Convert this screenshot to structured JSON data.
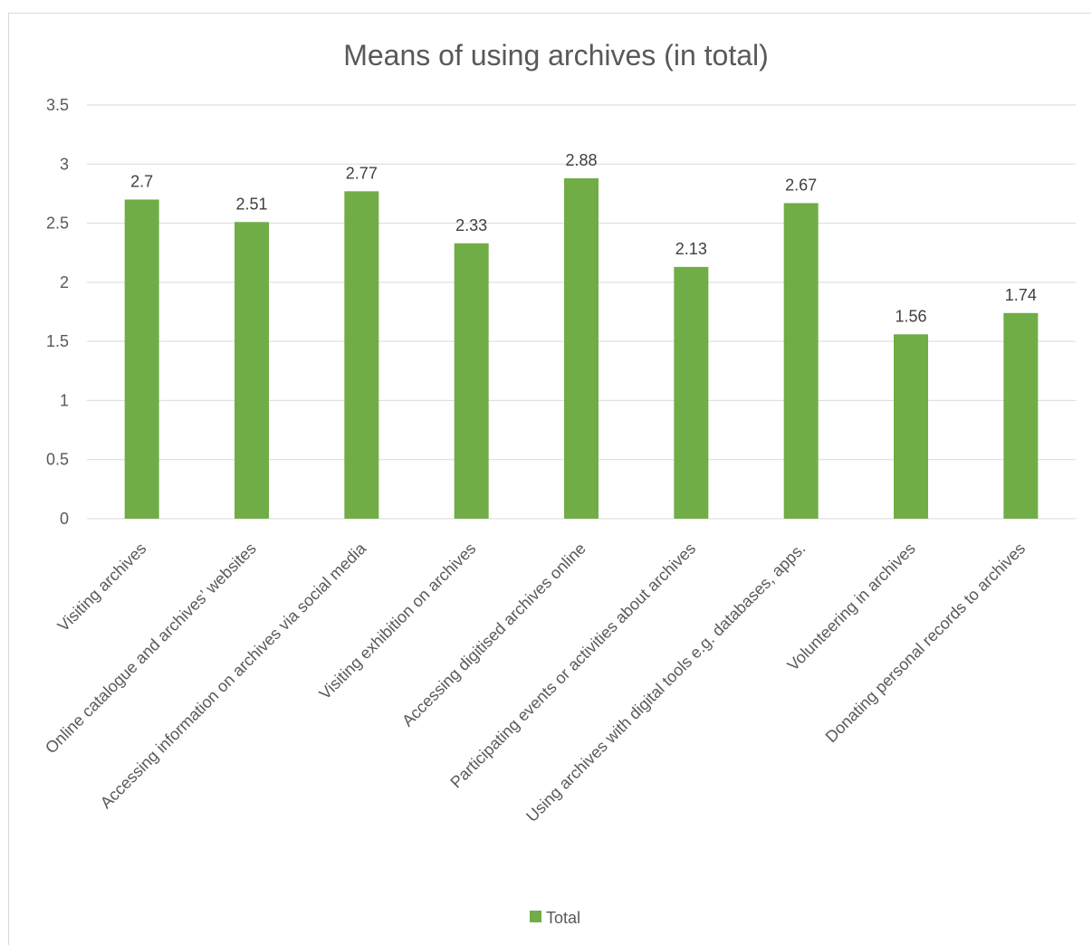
{
  "chart_data": {
    "type": "bar",
    "title": "Means of using archives (in total)",
    "xlabel": "",
    "ylabel": "",
    "ylim": [
      0,
      3.5
    ],
    "yticks": [
      "0",
      "0.5",
      "1",
      "1.5",
      "2",
      "2.5",
      "3",
      "3.5"
    ],
    "ytick_values": [
      0,
      0.5,
      1,
      1.5,
      2,
      2.5,
      3,
      3.5
    ],
    "grid": true,
    "legend_position": "bottom",
    "categories": [
      "Visiting archives",
      "Online catalogue and archives’ websites",
      "Accessing information on archives via social media",
      "Visiting exhibition on archives",
      "Accessing digitised archives online",
      "Participating events or activities about archives",
      "Using archives with digital tools e.g. databases, apps.",
      "Volunteering in archives",
      "Donating personal records to archives"
    ],
    "series": [
      {
        "name": "Total",
        "color": "#70ad47",
        "values": [
          2.7,
          2.51,
          2.77,
          2.33,
          2.88,
          2.13,
          2.67,
          1.56,
          1.74
        ],
        "labels": [
          "2.7",
          "2.51",
          "2.77",
          "2.33",
          "2.88",
          "2.13",
          "2.67",
          "1.56",
          "1.74"
        ]
      }
    ]
  }
}
